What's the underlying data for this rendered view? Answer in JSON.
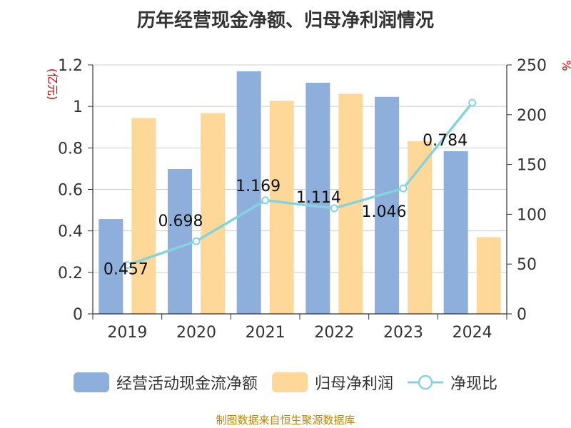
{
  "title": "历年经营现金净额、归母净利润情况",
  "source": "制图数据来自恒生聚源数据库",
  "colors": {
    "operating_cash": "#8eaedc",
    "net_profit": "#fdd898",
    "ratio_line": "#87d3dc",
    "axis_unit": "#e00000",
    "grid": "#cccccc",
    "text": "#333333"
  },
  "chart_data": {
    "type": "bar",
    "categories": [
      "2019",
      "2020",
      "2021",
      "2022",
      "2023",
      "2024"
    ],
    "y_left": {
      "unit": "(亿元)",
      "range": [
        0,
        1.2
      ],
      "ticks": [
        "0",
        "0.2",
        "0.4",
        "0.6",
        "0.8",
        "1",
        "1.2"
      ]
    },
    "y_right": {
      "unit": "%",
      "range": [
        0,
        250
      ],
      "ticks": [
        "0",
        "50",
        "100",
        "150",
        "200",
        "250"
      ]
    },
    "grid": true,
    "legend_position": "bottom",
    "series": [
      {
        "name": "经营活动现金流净额",
        "type": "bar",
        "axis": "left",
        "values": [
          0.457,
          0.698,
          1.169,
          1.114,
          1.046,
          0.784
        ],
        "labels": [
          "0.457",
          "0.698",
          "1.169",
          "1.114",
          "1.046",
          "0.784"
        ]
      },
      {
        "name": "归母净利润",
        "type": "bar",
        "axis": "left",
        "values": [
          0.944,
          0.968,
          1.027,
          1.061,
          0.832,
          0.37
        ]
      },
      {
        "name": "净现比",
        "type": "line",
        "axis": "right",
        "values": [
          49,
          73,
          114,
          106,
          126,
          212
        ]
      }
    ]
  }
}
